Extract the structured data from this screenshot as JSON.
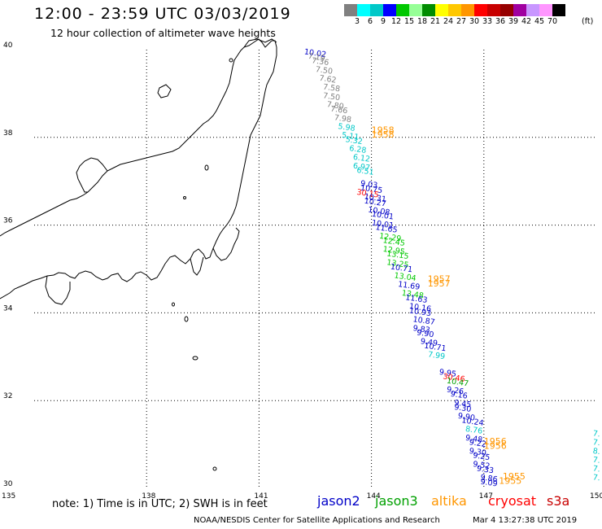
{
  "title": "12:00 - 23:59 UTC 03/03/2019",
  "subtitle": "12 hour collection of altimeter wave heights",
  "colorbar": {
    "unit": "(ft)",
    "colors": [
      "#808080",
      "#00ffff",
      "#00c8c8",
      "#0000ff",
      "#00c800",
      "#96ff96",
      "#008c00",
      "#ffff00",
      "#ffc800",
      "#ff9600",
      "#ff0000",
      "#c80000",
      "#960000",
      "#a000a0",
      "#c896ff",
      "#ff96ff",
      "#000000"
    ],
    "labels": [
      "3",
      "6",
      "9",
      "12",
      "15",
      "18",
      "21",
      "24",
      "27",
      "30",
      "33",
      "36",
      "39",
      "42",
      "45",
      "70"
    ]
  },
  "axes": {
    "lon_ticks": [
      "135",
      "138",
      "141",
      "144",
      "147",
      "150"
    ],
    "lat_ticks": [
      "40",
      "38",
      "36",
      "34",
      "32",
      "30"
    ]
  },
  "note": "note: 1) Time is in UTC; 2) SWH is in feet",
  "legend": [
    {
      "name": "jason2",
      "color": "#0000c8"
    },
    {
      "name": "jason3",
      "color": "#00a000"
    },
    {
      "name": "altika",
      "color": "#ff9600"
    },
    {
      "name": "cryosat",
      "color": "#ff0000"
    },
    {
      "name": "s3a",
      "color": "#c80000"
    }
  ],
  "credit": "NOAA/NESDIS Center for Satellite Applications and Research",
  "credit_time": "Mar  4 13:27:38 UTC 2019",
  "track_labels": [
    {
      "text": "10.02",
      "color": "#0000c8",
      "lon": 142.2,
      "lat": 39.9
    },
    {
      "text": "7.19",
      "color": "#808080",
      "lon": 142.3,
      "lat": 39.8
    },
    {
      "text": "7.36",
      "color": "#808080",
      "lon": 142.4,
      "lat": 39.7
    },
    {
      "text": "7.50",
      "color": "#808080",
      "lon": 142.5,
      "lat": 39.5
    },
    {
      "text": "7.62",
      "color": "#808080",
      "lon": 142.6,
      "lat": 39.3
    },
    {
      "text": "7.58",
      "color": "#808080",
      "lon": 142.7,
      "lat": 39.1
    },
    {
      "text": "7.50",
      "color": "#808080",
      "lon": 142.7,
      "lat": 38.9
    },
    {
      "text": "7.80",
      "color": "#808080",
      "lon": 142.8,
      "lat": 38.7
    },
    {
      "text": "7.66",
      "color": "#808080",
      "lon": 142.9,
      "lat": 38.6
    },
    {
      "text": "7.98",
      "color": "#808080",
      "lon": 143.0,
      "lat": 38.4
    },
    {
      "text": "5.98",
      "color": "#00c8c8",
      "lon": 143.1,
      "lat": 38.2
    },
    {
      "text": "5.11",
      "color": "#00c8c8",
      "lon": 143.2,
      "lat": 38.0
    },
    {
      "text": "5.32",
      "color": "#00c8c8",
      "lon": 143.3,
      "lat": 37.9
    },
    {
      "text": "6.28",
      "color": "#00c8c8",
      "lon": 143.4,
      "lat": 37.7
    },
    {
      "text": "6.12",
      "color": "#00c8c8",
      "lon": 143.5,
      "lat": 37.5
    },
    {
      "text": "6.97",
      "color": "#00c8c8",
      "lon": 143.5,
      "lat": 37.3
    },
    {
      "text": "6.51",
      "color": "#00c8c8",
      "lon": 143.6,
      "lat": 37.2
    },
    {
      "text": "9.03",
      "color": "#0000c8",
      "lon": 143.7,
      "lat": 36.9
    },
    {
      "text": "10.75",
      "color": "#0000c8",
      "lon": 143.7,
      "lat": 36.8
    },
    {
      "text": "30.15",
      "color": "#ff0000",
      "lon": 143.6,
      "lat": 36.7
    },
    {
      "text": "10.31",
      "color": "#0000c8",
      "lon": 143.8,
      "lat": 36.6
    },
    {
      "text": "10.27",
      "color": "#0000c8",
      "lon": 143.8,
      "lat": 36.5
    },
    {
      "text": "10.08",
      "color": "#0000c8",
      "lon": 143.9,
      "lat": 36.3
    },
    {
      "text": "10.01",
      "color": "#0000c8",
      "lon": 144.0,
      "lat": 36.2
    },
    {
      "text": "10.01",
      "color": "#0000c8",
      "lon": 144.0,
      "lat": 36.0
    },
    {
      "text": "11.65",
      "color": "#0000c8",
      "lon": 144.1,
      "lat": 35.9
    },
    {
      "text": "12.29",
      "color": "#00c800",
      "lon": 144.2,
      "lat": 35.7
    },
    {
      "text": "12.45",
      "color": "#00c800",
      "lon": 144.3,
      "lat": 35.6
    },
    {
      "text": "12.95",
      "color": "#00c800",
      "lon": 144.3,
      "lat": 35.4
    },
    {
      "text": "13.15",
      "color": "#00c800",
      "lon": 144.4,
      "lat": 35.3
    },
    {
      "text": "13.25",
      "color": "#00c800",
      "lon": 144.4,
      "lat": 35.1
    },
    {
      "text": "10.71",
      "color": "#0000c8",
      "lon": 144.5,
      "lat": 35.0
    },
    {
      "text": "13.04",
      "color": "#00c800",
      "lon": 144.6,
      "lat": 34.8
    },
    {
      "text": "11.69",
      "color": "#0000c8",
      "lon": 144.7,
      "lat": 34.6
    },
    {
      "text": "13.48",
      "color": "#00c800",
      "lon": 144.8,
      "lat": 34.4
    },
    {
      "text": "11.63",
      "color": "#0000c8",
      "lon": 144.9,
      "lat": 34.3
    },
    {
      "text": "10.16",
      "color": "#0000c8",
      "lon": 145.0,
      "lat": 34.1
    },
    {
      "text": "10.93",
      "color": "#0000c8",
      "lon": 145.0,
      "lat": 34.0
    },
    {
      "text": "10.87",
      "color": "#0000c8",
      "lon": 145.1,
      "lat": 33.8
    },
    {
      "text": "9.83",
      "color": "#0000c8",
      "lon": 145.1,
      "lat": 33.6
    },
    {
      "text": "9.90",
      "color": "#0000c8",
      "lon": 145.2,
      "lat": 33.5
    },
    {
      "text": "9.49",
      "color": "#0000c8",
      "lon": 145.3,
      "lat": 33.3
    },
    {
      "text": "10.71",
      "color": "#0000c8",
      "lon": 145.4,
      "lat": 33.2
    },
    {
      "text": "7.99",
      "color": "#00c8c8",
      "lon": 145.5,
      "lat": 33.0
    },
    {
      "text": "9.95",
      "color": "#0000c8",
      "lon": 145.8,
      "lat": 32.6
    },
    {
      "text": "30.46",
      "color": "#ff0000",
      "lon": 145.9,
      "lat": 32.5
    },
    {
      "text": "10.47",
      "color": "#00a000",
      "lon": 146.0,
      "lat": 32.4
    },
    {
      "text": "9.26",
      "color": "#0000c8",
      "lon": 146.0,
      "lat": 32.2
    },
    {
      "text": "9.16",
      "color": "#0000c8",
      "lon": 146.1,
      "lat": 32.1
    },
    {
      "text": "9.45",
      "color": "#0000c8",
      "lon": 146.2,
      "lat": 31.9
    },
    {
      "text": "9.30",
      "color": "#0000c8",
      "lon": 146.2,
      "lat": 31.8
    },
    {
      "text": "9.90",
      "color": "#0000c8",
      "lon": 146.3,
      "lat": 31.6
    },
    {
      "text": "10.24",
      "color": "#0000c8",
      "lon": 146.4,
      "lat": 31.5
    },
    {
      "text": "8.76",
      "color": "#00c8c8",
      "lon": 146.5,
      "lat": 31.3
    },
    {
      "text": "9.48",
      "color": "#0000c8",
      "lon": 146.5,
      "lat": 31.1
    },
    {
      "text": "9.22",
      "color": "#0000c8",
      "lon": 146.6,
      "lat": 31.0
    },
    {
      "text": "9.30",
      "color": "#0000c8",
      "lon": 146.6,
      "lat": 30.8
    },
    {
      "text": "9.25",
      "color": "#0000c8",
      "lon": 146.7,
      "lat": 30.7
    },
    {
      "text": "9.52",
      "color": "#0000c8",
      "lon": 146.7,
      "lat": 30.5
    },
    {
      "text": "9.33",
      "color": "#0000c8",
      "lon": 146.8,
      "lat": 30.4
    },
    {
      "text": "9.86",
      "color": "#0000c8",
      "lon": 146.9,
      "lat": 30.2
    },
    {
      "text": "9.09",
      "color": "#0000c8",
      "lon": 146.9,
      "lat": 30.1
    },
    {
      "text": "7.",
      "color": "#00c8c8",
      "lon": 149.9,
      "lat": 31.2
    },
    {
      "text": "7.",
      "color": "#00c8c8",
      "lon": 149.9,
      "lat": 31.0
    },
    {
      "text": "8.",
      "color": "#00c8c8",
      "lon": 149.9,
      "lat": 30.8
    },
    {
      "text": "7.",
      "color": "#00c8c8",
      "lon": 149.9,
      "lat": 30.6
    },
    {
      "text": "7.",
      "color": "#00c8c8",
      "lon": 149.9,
      "lat": 30.4
    },
    {
      "text": "7.",
      "color": "#00c8c8",
      "lon": 149.9,
      "lat": 30.2
    }
  ],
  "time_labels": [
    {
      "text": "1958",
      "lon": 144.0,
      "lat": 38.1
    },
    {
      "text": "1958",
      "lon": 144.0,
      "lat": 38.0
    },
    {
      "text": "1957",
      "lon": 145.5,
      "lat": 34.7
    },
    {
      "text": "1957",
      "lon": 145.5,
      "lat": 34.6
    },
    {
      "text": "1956",
      "lon": 147.0,
      "lat": 31.0
    },
    {
      "text": "1956",
      "lon": 147.0,
      "lat": 30.9
    },
    {
      "text": "1955",
      "lon": 147.5,
      "lat": 30.2
    },
    {
      "text": "1955",
      "lon": 147.4,
      "lat": 30.1
    }
  ]
}
